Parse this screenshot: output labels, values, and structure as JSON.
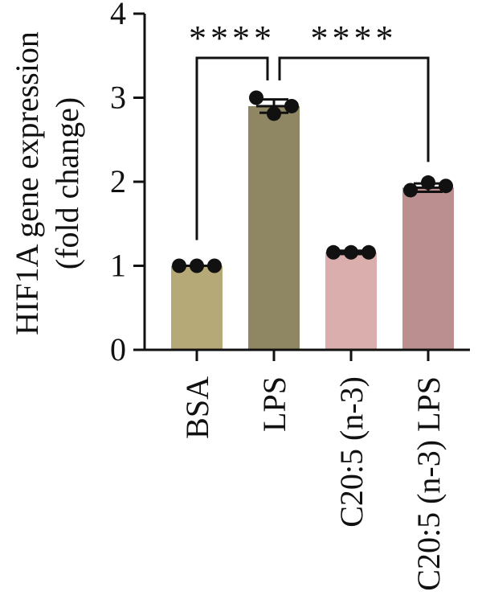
{
  "chart_data": {
    "type": "bar",
    "title": "",
    "xlabel": "",
    "ylabel_lines": [
      "HIF1A gene expression",
      "(fold change)"
    ],
    "ylim": [
      0,
      4
    ],
    "yticks": [
      0,
      1,
      2,
      3,
      4
    ],
    "categories": [
      "BSA",
      "LPS",
      "C20:5 (n-3)",
      "C20:5 (n-3) LPS"
    ],
    "values": [
      1.0,
      2.9,
      1.16,
      1.93
    ],
    "errors": [
      0.0,
      0.08,
      0.02,
      0.05
    ],
    "points": [
      [
        1.0,
        1.0,
        1.0
      ],
      [
        3.0,
        2.81,
        2.9
      ],
      [
        1.16,
        1.16,
        1.16
      ],
      [
        1.9,
        1.99,
        1.95
      ]
    ],
    "colors": [
      "#b5aa77",
      "#8f8663",
      "#d9aeac",
      "#bb8f8f"
    ],
    "grid": false,
    "significance": [
      {
        "from": 0,
        "to": 1,
        "label": "****"
      },
      {
        "from": 1,
        "to": 3,
        "label": "****"
      }
    ]
  }
}
